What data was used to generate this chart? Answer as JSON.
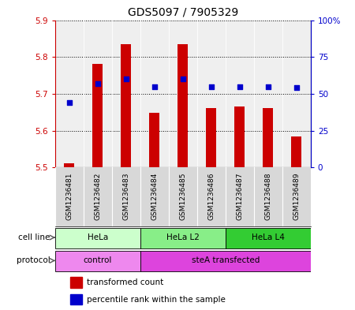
{
  "title": "GDS5097 / 7905329",
  "samples": [
    "GSM1236481",
    "GSM1236482",
    "GSM1236483",
    "GSM1236484",
    "GSM1236485",
    "GSM1236486",
    "GSM1236487",
    "GSM1236488",
    "GSM1236489"
  ],
  "transformed_count": [
    5.512,
    5.782,
    5.835,
    5.648,
    5.835,
    5.662,
    5.665,
    5.662,
    5.585
  ],
  "percentile_rank": [
    44,
    57,
    60,
    55,
    60,
    55,
    55,
    55,
    54
  ],
  "ylim_left": [
    5.5,
    5.9
  ],
  "ylim_right": [
    0,
    100
  ],
  "yticks_left": [
    5.5,
    5.6,
    5.7,
    5.8,
    5.9
  ],
  "yticks_right": [
    0,
    25,
    50,
    75,
    100
  ],
  "ytick_labels_right": [
    "0",
    "25",
    "50",
    "75",
    "100%"
  ],
  "bar_color": "#cc0000",
  "dot_color": "#0000cc",
  "bar_bottom": 5.5,
  "cell_line_groups": [
    {
      "label": "HeLa",
      "start": 0,
      "end": 3,
      "color": "#ccffcc"
    },
    {
      "label": "HeLa L2",
      "start": 3,
      "end": 6,
      "color": "#88ee88"
    },
    {
      "label": "HeLa L4",
      "start": 6,
      "end": 9,
      "color": "#33cc33"
    }
  ],
  "protocol_groups": [
    {
      "label": "control",
      "start": 0,
      "end": 3,
      "color": "#ee88ee"
    },
    {
      "label": "steA transfected",
      "start": 3,
      "end": 9,
      "color": "#dd44dd"
    }
  ],
  "legend_bar_label": "transformed count",
  "legend_dot_label": "percentile rank within the sample",
  "left_color": "#cc0000",
  "right_color": "#0000cc"
}
